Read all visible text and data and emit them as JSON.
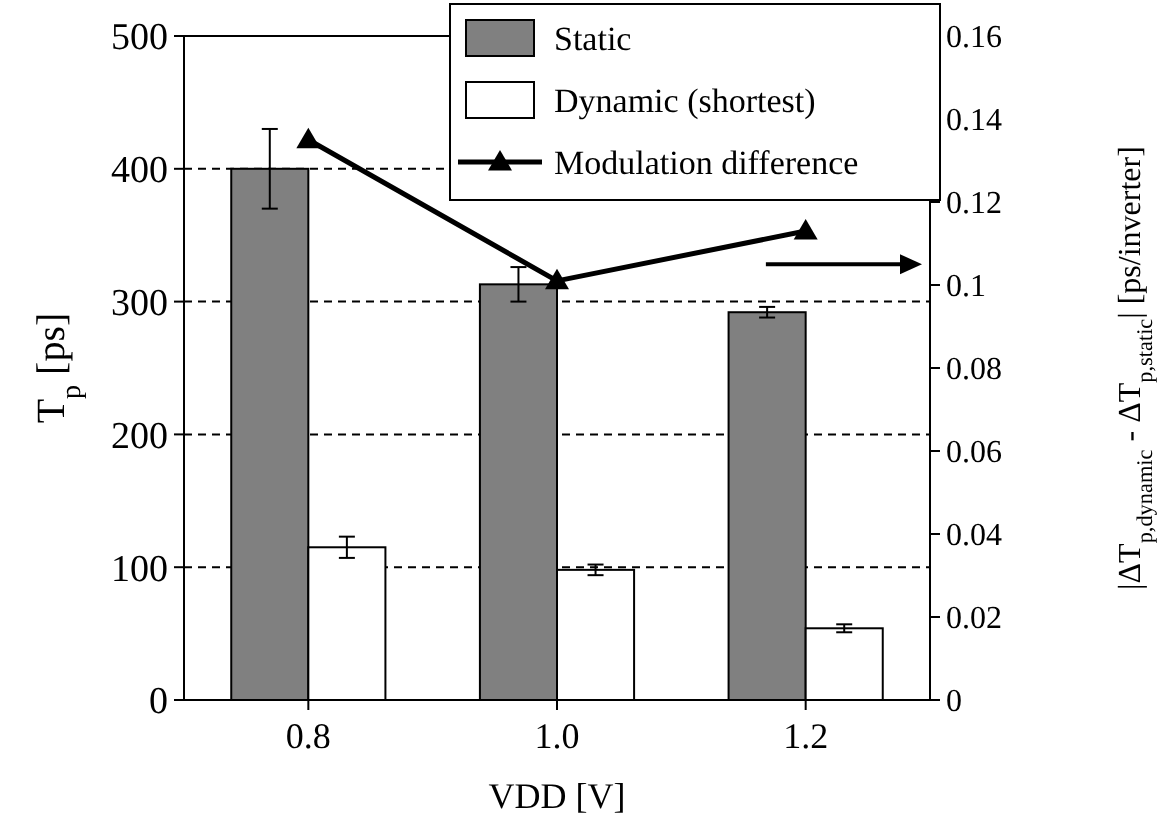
{
  "chart_data": {
    "type": "bar",
    "categories": [
      "0.8",
      "1.0",
      "1.2"
    ],
    "xlabel": "VDD [V]",
    "ylabel": "T$_{p}$ [ps]",
    "y2label": "|ΔT$_{p,dynamic}$ - ΔT$_{p,static}$| [ps/inverter]",
    "series": [
      {
        "name": "Static",
        "color": "#808080",
        "values": [
          400,
          313,
          292
        ],
        "errors": [
          30,
          13,
          4
        ]
      },
      {
        "name": "Dynamic (shortest)",
        "color": "#ffffff",
        "values": [
          115,
          98,
          54
        ],
        "errors": [
          8,
          4,
          3
        ]
      },
      {
        "name": "Modulation difference",
        "type": "line",
        "axis": "y2",
        "color": "#000000",
        "values": [
          0.135,
          0.101,
          0.113
        ],
        "marker": "triangle"
      }
    ],
    "ylim": [
      0,
      500
    ],
    "yticks": [
      0,
      100,
      200,
      300,
      400,
      500
    ],
    "y2lim": [
      0,
      0.16
    ],
    "y2ticks": [
      0,
      0.02,
      0.04,
      0.06,
      0.08,
      0.1,
      0.12,
      0.14,
      0.16
    ],
    "grid": "y",
    "legend": "top right"
  }
}
